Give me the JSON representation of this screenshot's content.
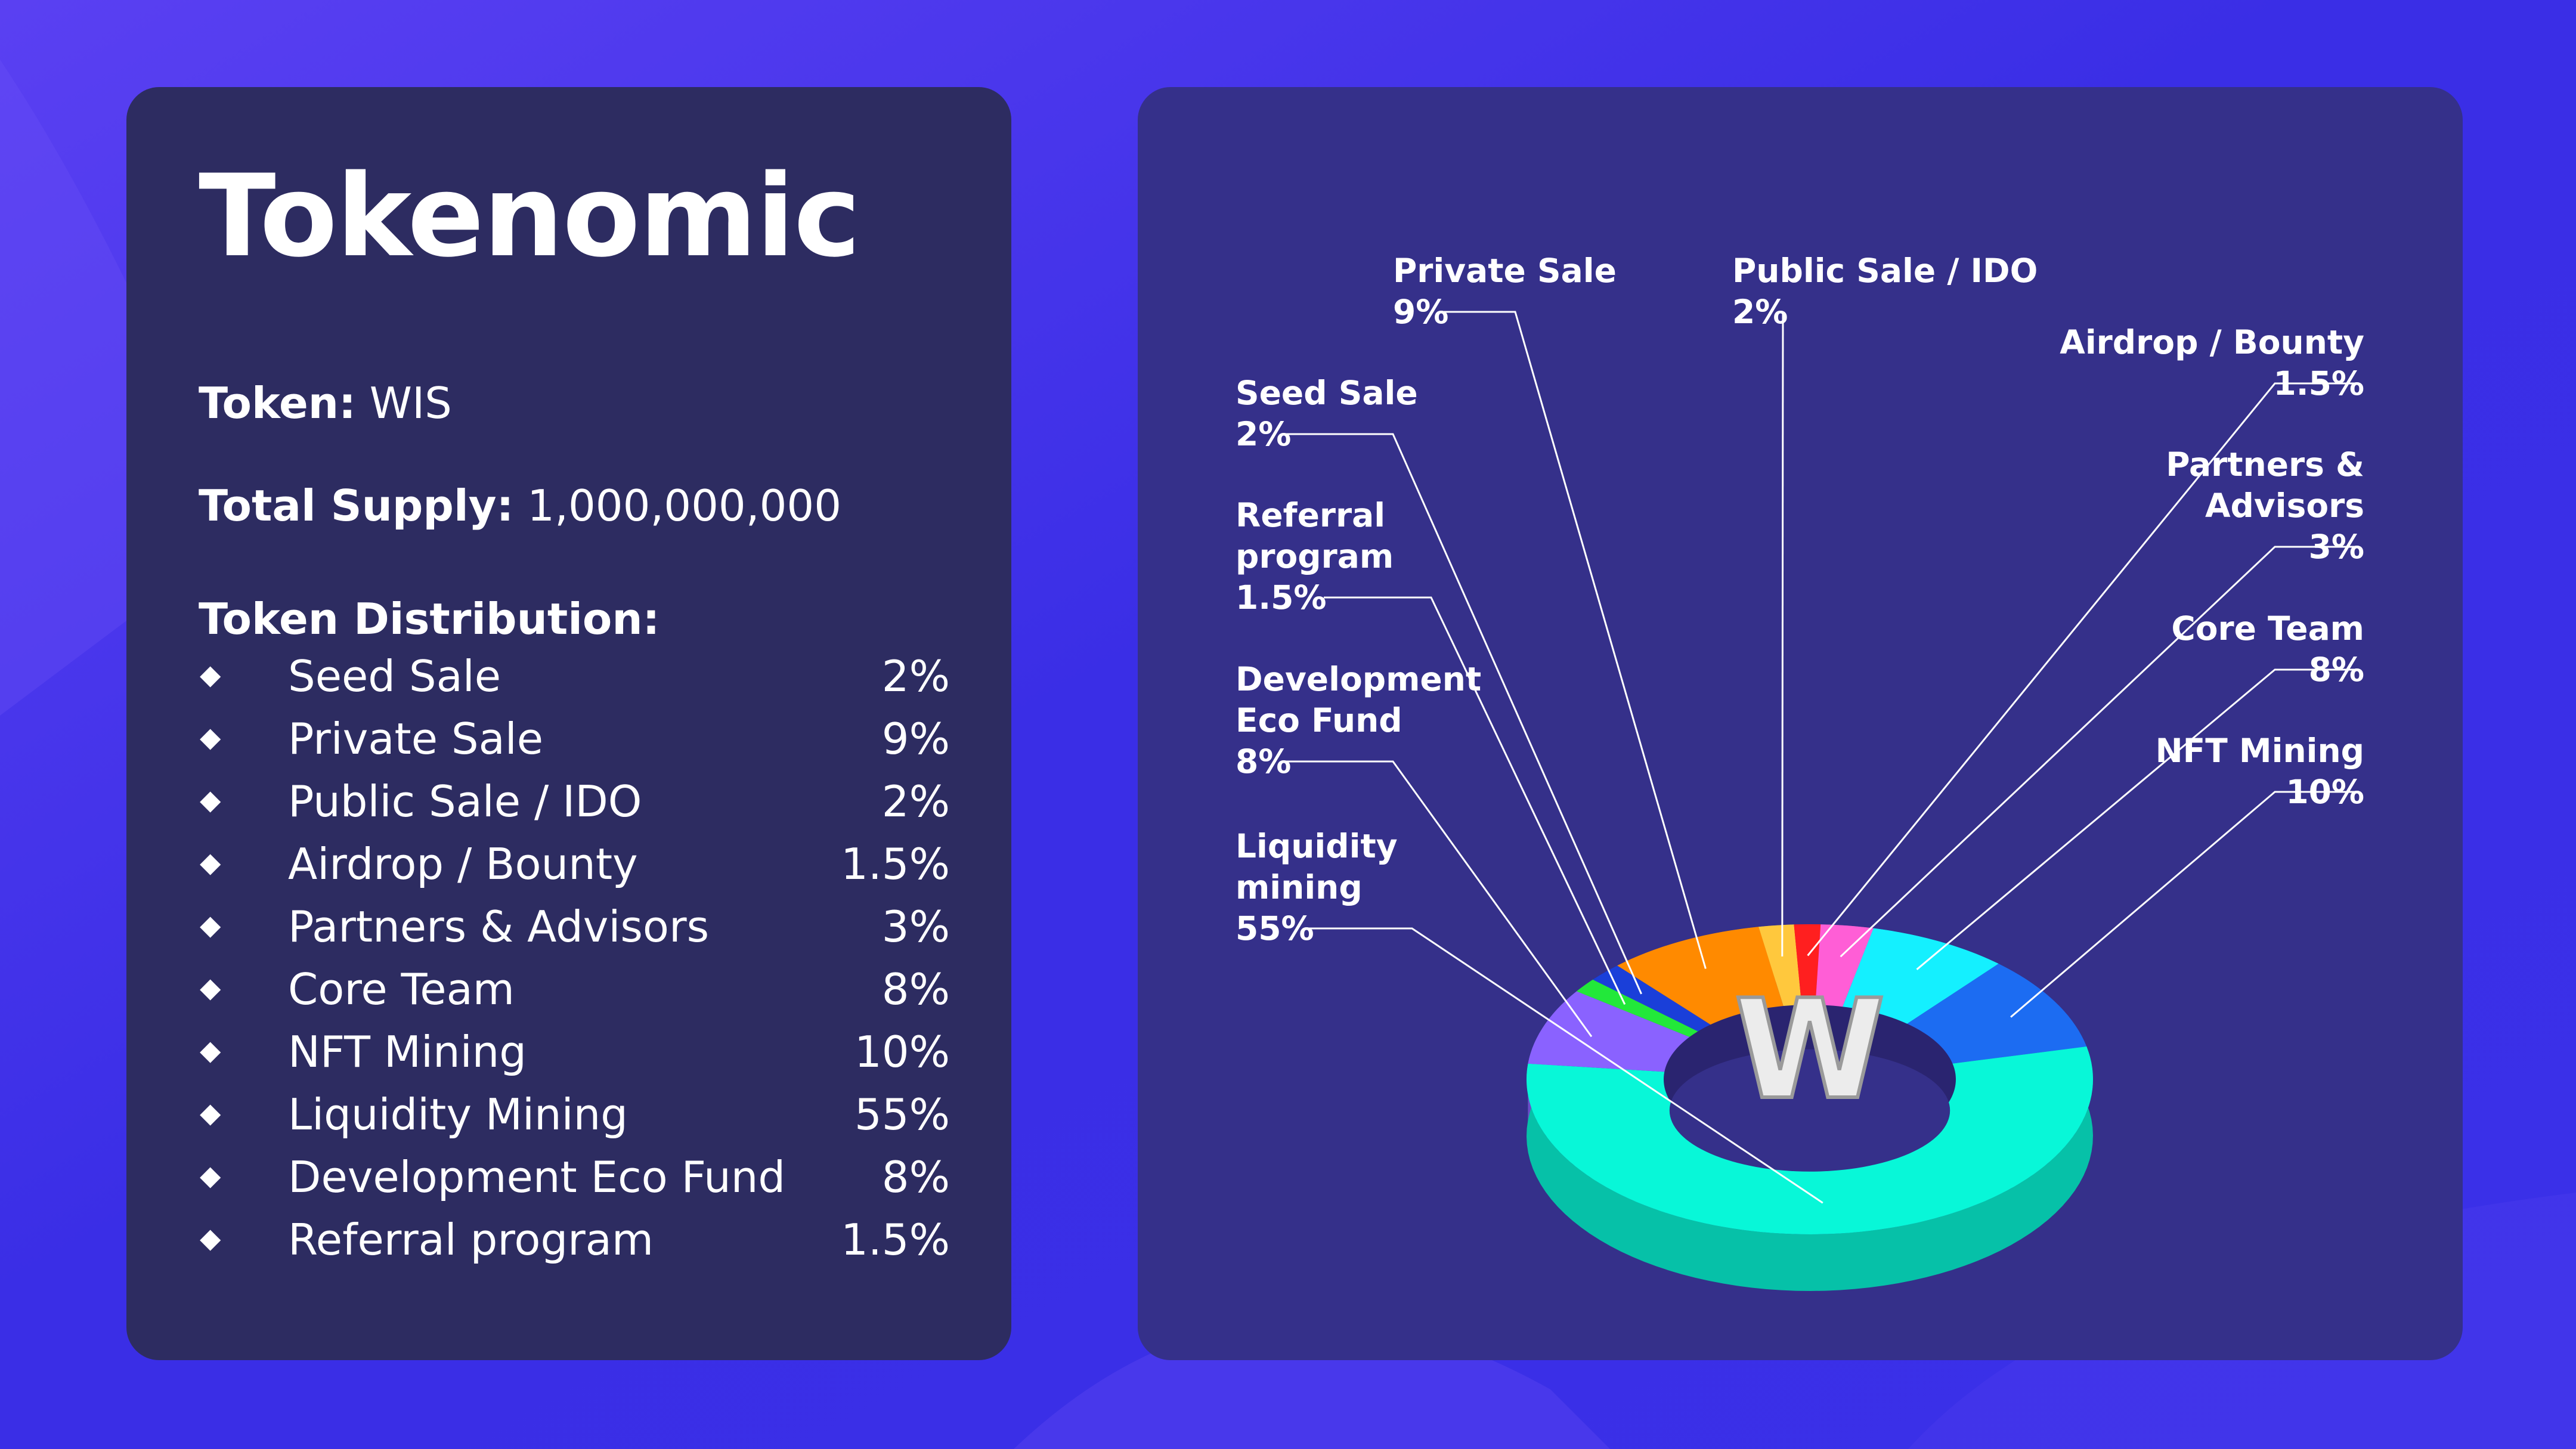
{
  "colors": {
    "background": "#3a2ee6",
    "left_panel": "#2d2c61",
    "right_panel": "#35308a",
    "text": "#ffffff",
    "leader_line": "#ffffff"
  },
  "title": "Tokenomic",
  "token": {
    "label": "Token:",
    "value": "WIS"
  },
  "total_supply": {
    "label": "Total Supply:",
    "value": "1,000,000,000"
  },
  "distribution_heading": "Token Distribution:",
  "distribution": [
    {
      "name": "Seed Sale",
      "percent": "2%"
    },
    {
      "name": "Private Sale",
      "percent": "9%"
    },
    {
      "name": "Public Sale / IDO",
      "percent": "2%"
    },
    {
      "name": "Airdrop / Bounty",
      "percent": "1.5%"
    },
    {
      "name": "Partners & Advisors",
      "percent": "3%"
    },
    {
      "name": "Core Team",
      "percent": "8%"
    },
    {
      "name": "NFT Mining",
      "percent": "10%"
    },
    {
      "name": "Liquidity Mining",
      "percent": "55%"
    },
    {
      "name": "Development Eco Fund",
      "percent": "8%"
    },
    {
      "name": "Referral program",
      "percent": "1.5%"
    }
  ],
  "chart_data": {
    "type": "pie",
    "style": "3d-donut",
    "slices": [
      {
        "label": [
          "Seed Sale"
        ],
        "pct_text": "2%",
        "value": 2,
        "color": "#1a3fd9",
        "side": "left"
      },
      {
        "label": [
          "Private Sale"
        ],
        "pct_text": "9%",
        "value": 9,
        "color": "#ff8a00",
        "side": "left"
      },
      {
        "label": [
          "Public Sale / IDO"
        ],
        "pct_text": "2%",
        "value": 2,
        "color": "#ffc83d",
        "side": "left"
      },
      {
        "label": [
          "Airdrop / Bounty"
        ],
        "pct_text": "1.5%",
        "value": 1.5,
        "color": "#ff1f1f",
        "side": "right"
      },
      {
        "label": [
          "Partners &",
          "Advisors"
        ],
        "pct_text": "3%",
        "value": 3,
        "color": "#ff5ed6",
        "side": "right"
      },
      {
        "label": [
          "Core Team"
        ],
        "pct_text": "8%",
        "value": 8,
        "color": "#14f0ff",
        "side": "right"
      },
      {
        "label": [
          "NFT Mining"
        ],
        "pct_text": "10%",
        "value": 10,
        "color": "#1c6cf2",
        "side": "right"
      },
      {
        "label": [
          "Liquidity",
          "mining"
        ],
        "pct_text": "55%",
        "value": 55,
        "color": "#08f7d8",
        "side": "left"
      },
      {
        "label": [
          "Development",
          "Eco Fund"
        ],
        "pct_text": "8%",
        "value": 8,
        "color": "#8a62ff",
        "side": "left"
      },
      {
        "label": [
          "Referral",
          "program"
        ],
        "pct_text": "1.5%",
        "value": 1.5,
        "color": "#22e83a",
        "side": "left"
      }
    ],
    "center_logo_text": "W"
  }
}
